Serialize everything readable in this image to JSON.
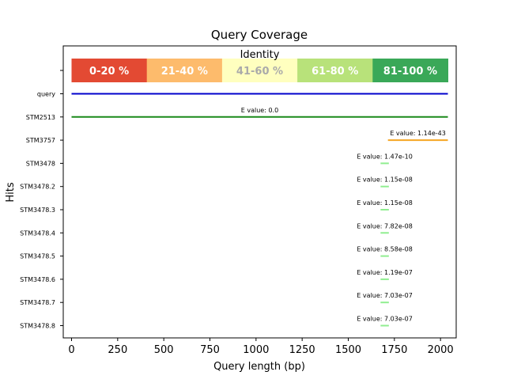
{
  "chart_data": {
    "type": "line",
    "title": "Query Coverage",
    "xlabel": "Query length (bp)",
    "ylabel": "Hits",
    "xlim": [
      -45,
      2085
    ],
    "x_ticks": [
      0,
      250,
      500,
      750,
      1000,
      1250,
      1500,
      1750,
      2000
    ],
    "legend": {
      "title": "Identity",
      "placement": "top",
      "items": [
        {
          "label": "0-20 %",
          "color": "#e34a33",
          "text_color": "#ffffff"
        },
        {
          "label": "21-40 %",
          "color": "#fdbb6c",
          "text_color": "#ffffff"
        },
        {
          "label": "41-60 %",
          "color": "#ffffbf",
          "text_color": "#aaaaaa"
        },
        {
          "label": "61-80 %",
          "color": "#b8e27a",
          "text_color": "#ffffff"
        },
        {
          "label": "81-100 %",
          "color": "#3aa858",
          "text_color": "#ffffff"
        }
      ]
    },
    "hits": [
      {
        "name": "query",
        "start": 0,
        "end": 2040,
        "color": "#0000cc",
        "evalue_label": ""
      },
      {
        "name": "STM2513",
        "start": 0,
        "end": 2040,
        "color": "#1a8a1a",
        "evalue_label": "E value: 0.0"
      },
      {
        "name": "STM3757",
        "start": 1715,
        "end": 2040,
        "color": "#f5a623",
        "evalue_label": "E value: 1.14e-43"
      },
      {
        "name": "STM3478",
        "start": 1675,
        "end": 1720,
        "color": "#90ee90",
        "evalue_label": "E value: 1.47e-10"
      },
      {
        "name": "STM3478.2",
        "start": 1675,
        "end": 1720,
        "color": "#90ee90",
        "evalue_label": "E value: 1.15e-08"
      },
      {
        "name": "STM3478.3",
        "start": 1675,
        "end": 1720,
        "color": "#90ee90",
        "evalue_label": "E value: 1.15e-08"
      },
      {
        "name": "STM3478.4",
        "start": 1675,
        "end": 1720,
        "color": "#90ee90",
        "evalue_label": "E value: 7.82e-08"
      },
      {
        "name": "STM3478.5",
        "start": 1675,
        "end": 1720,
        "color": "#90ee90",
        "evalue_label": "E value: 8.58e-08"
      },
      {
        "name": "STM3478.6",
        "start": 1675,
        "end": 1720,
        "color": "#90ee90",
        "evalue_label": "E value: 1.19e-07"
      },
      {
        "name": "STM3478.7",
        "start": 1675,
        "end": 1720,
        "color": "#90ee90",
        "evalue_label": "E value: 7.03e-07"
      },
      {
        "name": "STM3478.8",
        "start": 1675,
        "end": 1720,
        "color": "#90ee90",
        "evalue_label": "E value: 7.03e-07"
      }
    ]
  }
}
